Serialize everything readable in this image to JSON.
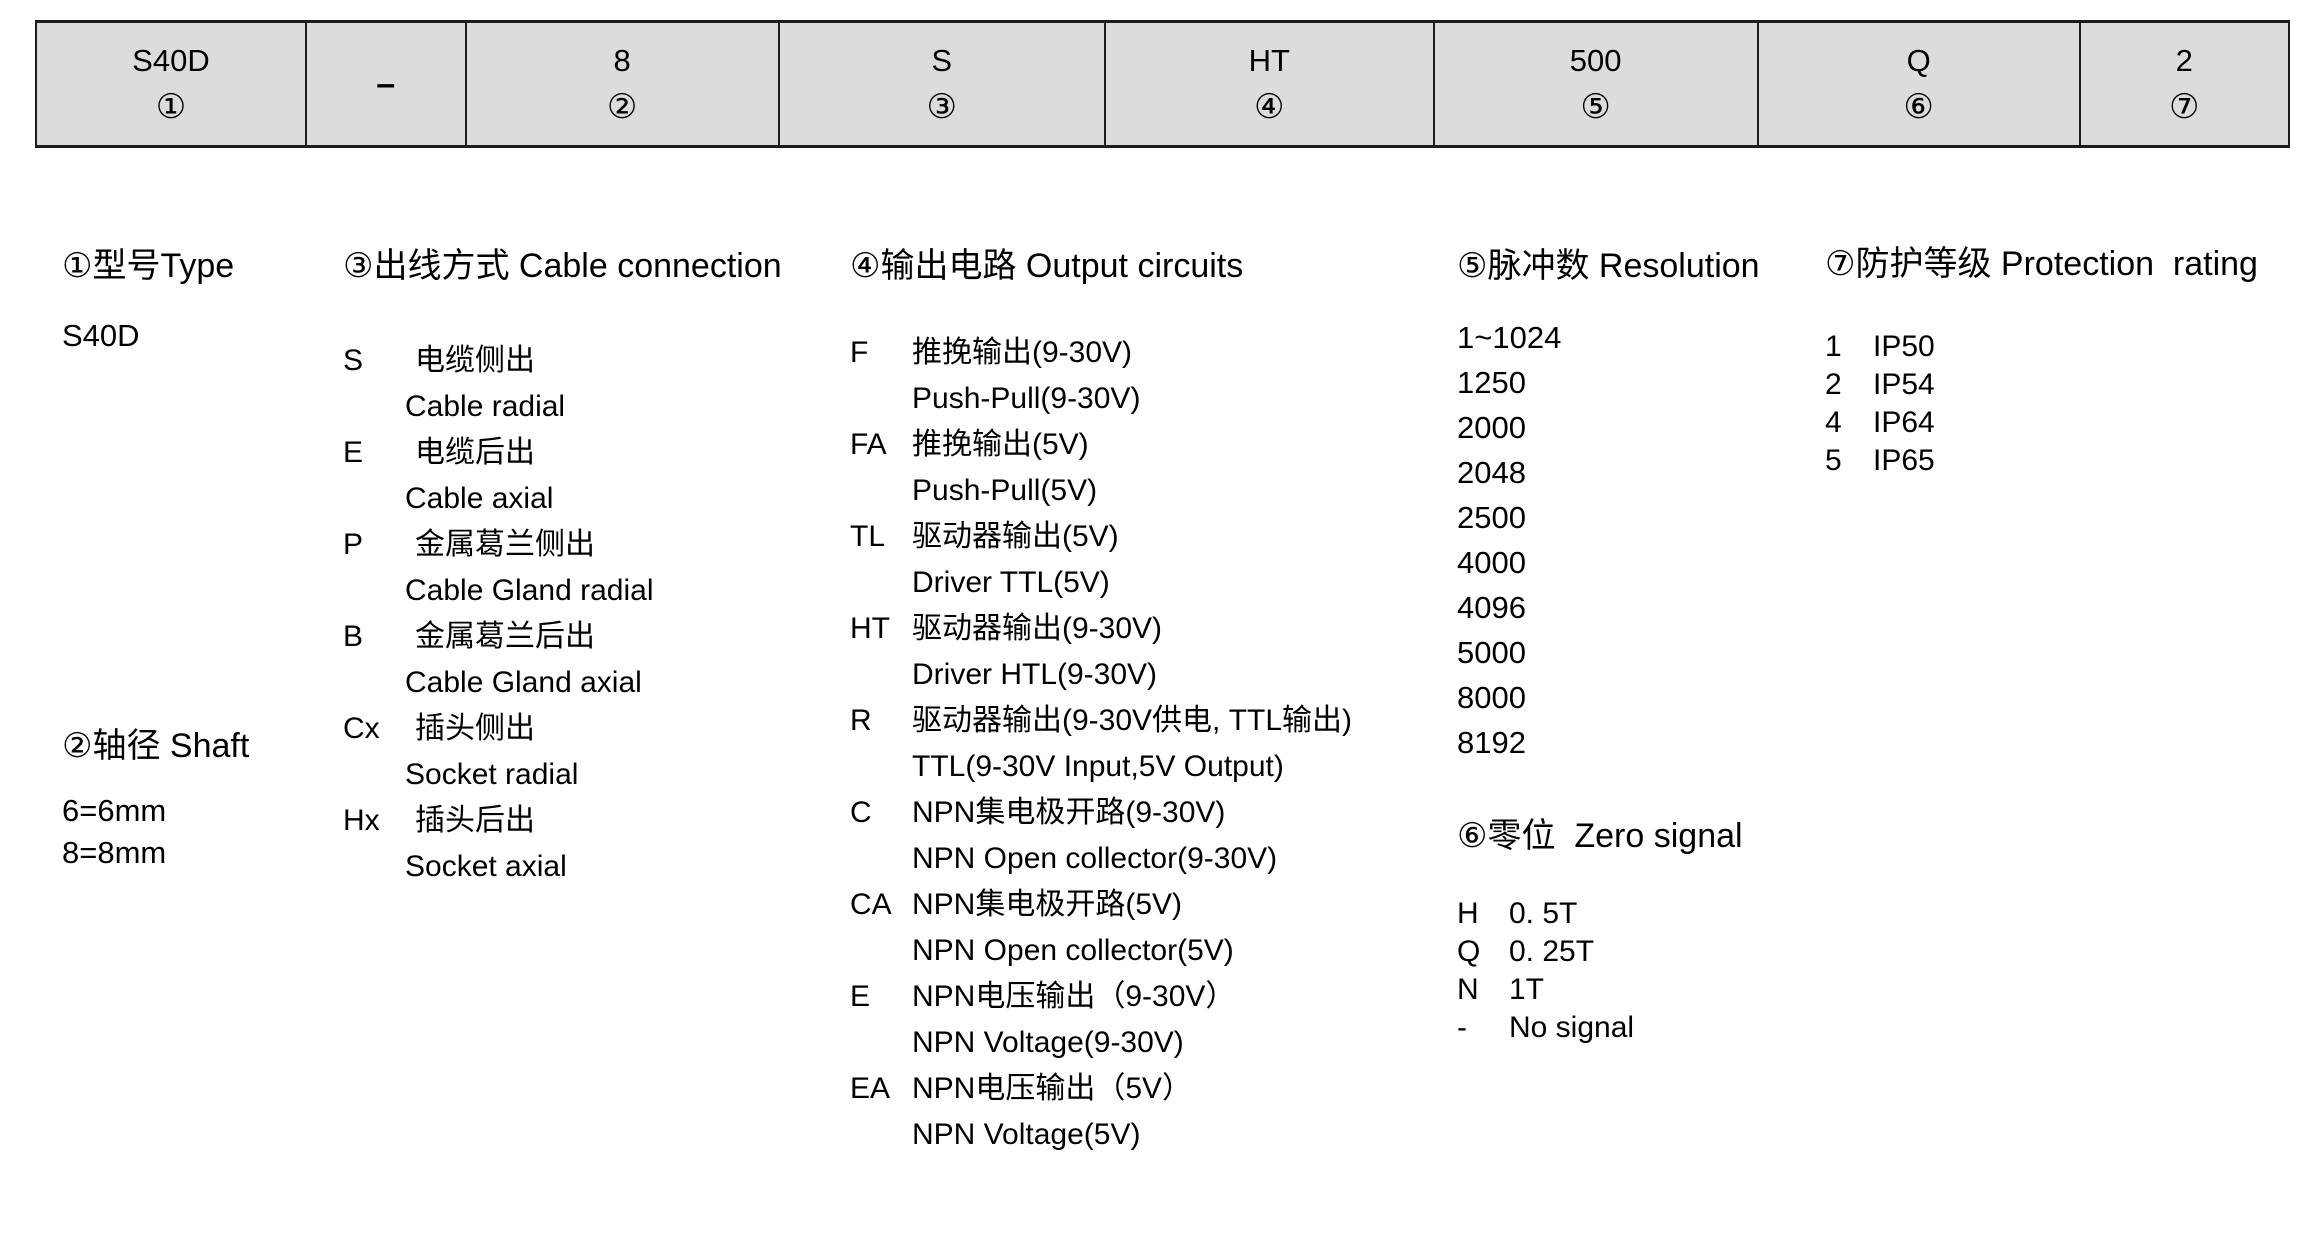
{
  "colors": {
    "table_background": "#dcdcdc",
    "table_border": "#1c1c1c",
    "text": "#000000",
    "page_background": "#ffffff"
  },
  "model_code_table": {
    "cells": [
      {
        "value": "S40D",
        "num": "①"
      },
      {
        "value": "–",
        "num": ""
      },
      {
        "value": "8",
        "num": "②"
      },
      {
        "value": "S",
        "num": "③"
      },
      {
        "value": "HT",
        "num": "④"
      },
      {
        "value": "500",
        "num": "⑤"
      },
      {
        "value": "Q",
        "num": "⑥"
      },
      {
        "value": "2",
        "num": "⑦"
      }
    ]
  },
  "sections": {
    "type": {
      "title": "①型号Type",
      "value": "S40D"
    },
    "shaft": {
      "title": "②轴径 Shaft",
      "items": [
        "6=6mm",
        "8=8mm"
      ]
    },
    "cable": {
      "title": "③出线方式 Cable connection",
      "items": [
        {
          "code": "S",
          "cn": "电缆侧出",
          "en": "Cable radial"
        },
        {
          "code": "E",
          "cn": "电缆后出",
          "en": "Cable axial"
        },
        {
          "code": "P",
          "cn": "金属葛兰侧出",
          "en": "Cable Gland radial"
        },
        {
          "code": "B",
          "cn": "金属葛兰后出",
          "en": "Cable Gland axial"
        },
        {
          "code": "Cx",
          "cn": "插头侧出",
          "en": "Socket radial"
        },
        {
          "code": "Hx",
          "cn": "插头后出",
          "en": "Socket axial"
        }
      ]
    },
    "output": {
      "title": "④输出电路 Output circuits",
      "items": [
        {
          "code": "F",
          "cn": "推挽输出(9-30V)",
          "en": "Push-Pull(9-30V)"
        },
        {
          "code": "FA",
          "cn": "推挽输出(5V)",
          "en": "Push-Pull(5V)"
        },
        {
          "code": "TL",
          "cn": "驱动器输出(5V)",
          "en": "Driver TTL(5V)"
        },
        {
          "code": "HT",
          "cn": "驱动器输出(9-30V)",
          "en": "Driver HTL(9-30V)"
        },
        {
          "code": "R",
          "cn": "驱动器输出(9-30V供电, TTL输出)",
          "en": "TTL(9-30V Input,5V Output)"
        },
        {
          "code": "C",
          "cn": "NPN集电极开路(9-30V)",
          "en": "NPN Open collector(9-30V)"
        },
        {
          "code": "CA",
          "cn": "NPN集电极开路(5V)",
          "en": "NPN Open collector(5V)"
        },
        {
          "code": "E",
          "cn": "NPN电压输出（9-30V）",
          "en": "NPN Voltage(9-30V)"
        },
        {
          "code": "EA",
          "cn": "NPN电压输出（5V）",
          "en": "NPN Voltage(5V)"
        }
      ]
    },
    "resolution": {
      "title": "⑤脉冲数 Resolution",
      "items": [
        "1~1024",
        "1250",
        "2000",
        "2048",
        "2500",
        "4000",
        "4096",
        "5000",
        "8000",
        "8192"
      ]
    },
    "zero": {
      "title": "⑥零位  Zero signal",
      "items": [
        {
          "code": "H",
          "value": "0. 5T"
        },
        {
          "code": "Q",
          "value": "0. 25T"
        },
        {
          "code": "N",
          "value": "1T"
        },
        {
          "code": "-",
          "value": "No signal"
        }
      ]
    },
    "protection": {
      "title": "⑦防护等级 Protection  rating",
      "items": [
        {
          "code": "1",
          "value": "IP50"
        },
        {
          "code": "2",
          "value": "IP54"
        },
        {
          "code": "4",
          "value": "IP64"
        },
        {
          "code": "5",
          "value": "IP65"
        }
      ]
    }
  }
}
